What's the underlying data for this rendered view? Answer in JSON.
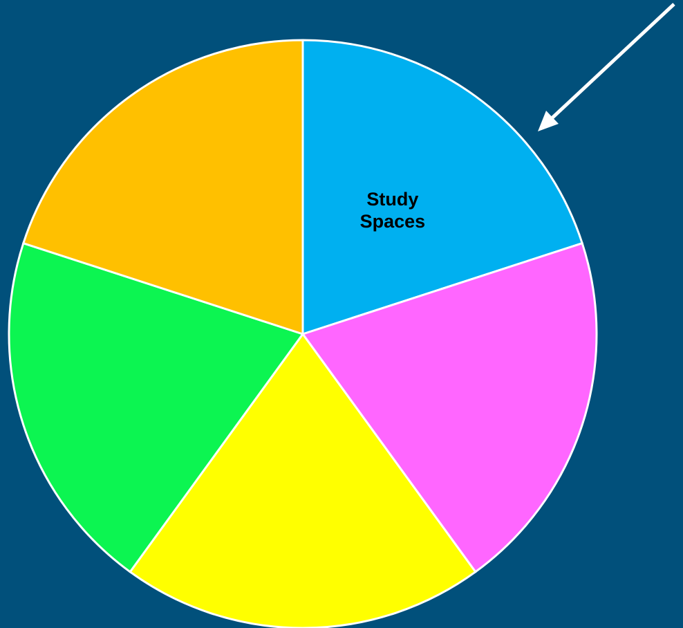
{
  "chart_data": {
    "type": "pie",
    "categories": [
      "Study Spaces",
      null,
      null,
      null,
      null
    ],
    "values": [
      20,
      20,
      20,
      20,
      20
    ],
    "colors": [
      "#00b0f0",
      "#ff66ff",
      "#ffff00",
      "#0cf551",
      "#ffc000"
    ]
  }
}
